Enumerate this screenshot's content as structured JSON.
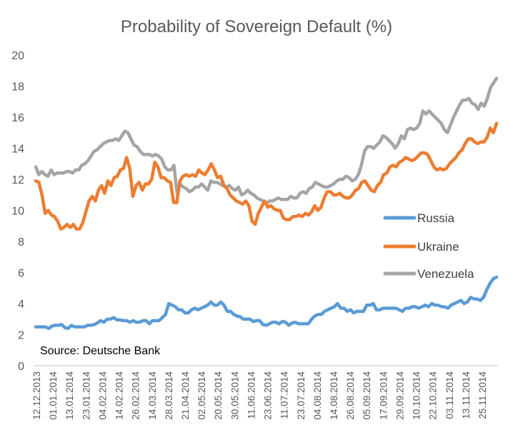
{
  "chart_data": {
    "type": "line",
    "title": "Probability of Sovereign Default (%)",
    "xlabel": "",
    "ylabel": "",
    "ylim": [
      0,
      20
    ],
    "yticks": [
      0,
      2,
      4,
      6,
      8,
      10,
      12,
      14,
      16,
      18,
      20
    ],
    "grid": false,
    "legend": {
      "placement": "right-middle"
    },
    "annotation": "Source: Deutsche Bank",
    "x_tick_labels": [
      "12.12.2013",
      "01.01.2014",
      "13.01.2014",
      "23.01.2014",
      "04.02.2014",
      "14.02.2014",
      "26.02.2014",
      "14.03.2014",
      "28.03.2014",
      "21.04.2014",
      "02.05.2014",
      "20.05.2014",
      "30.05.2014",
      "11.06.2014",
      "23.06.2014",
      "11.07.2014",
      "23.07.2014",
      "04.08.2014",
      "14.08.2014",
      "26.08.2014",
      "05.09.2014",
      "17.09.2014",
      "29.09.2014",
      "10.10.2014",
      "22.10.2014",
      "03.11.2014",
      "13.11.2014",
      "25.11.2014"
    ],
    "series": [
      {
        "name": "Russia",
        "color": "#5b9bd5",
        "values": [
          2.5,
          2.5,
          2.5,
          2.5,
          2.4,
          2.55,
          2.6,
          2.6,
          2.65,
          2.45,
          2.4,
          2.6,
          2.5,
          2.5,
          2.5,
          2.5,
          2.6,
          2.6,
          2.65,
          2.75,
          2.9,
          2.8,
          3.0,
          3.0,
          3.1,
          2.95,
          2.95,
          2.9,
          2.9,
          2.8,
          2.9,
          2.8,
          2.8,
          2.9,
          2.9,
          2.7,
          2.9,
          2.9,
          2.9,
          3.1,
          3.3,
          4.0,
          3.9,
          3.8,
          3.6,
          3.6,
          3.4,
          3.4,
          3.6,
          3.7,
          3.6,
          3.7,
          3.8,
          3.9,
          4.1,
          3.9,
          3.9,
          4.1,
          3.9,
          3.5,
          3.5,
          3.3,
          3.2,
          3.15,
          3.0,
          3.0,
          3.0,
          2.85,
          2.9,
          2.9,
          2.65,
          2.6,
          2.7,
          2.8,
          2.8,
          2.7,
          2.85,
          2.8,
          2.6,
          2.75,
          2.8,
          2.7,
          2.7,
          2.7,
          2.7,
          3.0,
          3.2,
          3.3,
          3.3,
          3.5,
          3.6,
          3.7,
          3.8,
          4.0,
          3.7,
          3.7,
          3.5,
          3.6,
          3.4,
          3.5,
          3.5,
          3.5,
          3.9,
          3.9,
          4.0,
          3.6,
          3.6,
          3.7,
          3.7,
          3.7,
          3.7,
          3.7,
          3.6,
          3.5,
          3.7,
          3.7,
          3.8,
          3.8,
          3.7,
          3.8,
          3.9,
          3.8,
          4.0,
          3.9,
          3.9,
          3.8,
          3.8,
          3.7,
          3.9,
          4.0,
          4.1,
          4.2,
          4.0,
          4.1,
          4.4,
          4.3,
          4.3,
          4.2,
          4.4,
          4.9,
          5.3,
          5.6,
          5.7
        ]
      },
      {
        "name": "Ukraine",
        "color": "#ed7d31",
        "values": [
          11.9,
          11.8,
          11.0,
          9.8,
          10.0,
          9.7,
          9.6,
          9.3,
          8.8,
          8.9,
          9.1,
          8.9,
          9.1,
          8.8,
          8.8,
          9.2,
          9.9,
          10.6,
          10.9,
          10.6,
          11.3,
          11.6,
          11.1,
          11.9,
          11.6,
          12.1,
          12.2,
          12.6,
          12.7,
          13.4,
          12.7,
          10.9,
          11.6,
          11.8,
          11.3,
          11.7,
          11.7,
          12.0,
          13.1,
          12.8,
          12.1,
          12.1,
          11.9,
          11.8,
          10.5,
          10.5,
          11.9,
          12.2,
          12.3,
          12.2,
          12.3,
          12.2,
          12.6,
          12.4,
          12.3,
          12.6,
          13.0,
          12.6,
          12.1,
          12.2,
          11.6,
          11.4,
          11.0,
          10.8,
          10.6,
          10.5,
          10.4,
          10.6,
          10.3,
          9.3,
          9.1,
          9.8,
          10.2,
          10.6,
          10.2,
          10.3,
          10.1,
          10.0,
          10.0,
          9.5,
          9.4,
          9.4,
          9.6,
          9.6,
          9.7,
          9.6,
          9.8,
          9.7,
          9.9,
          10.3,
          10.0,
          10.2,
          10.8,
          11.2,
          11.2,
          11.0,
          11.0,
          11.1,
          10.9,
          10.8,
          10.8,
          11.0,
          11.3,
          11.4,
          11.8,
          11.9,
          11.6,
          11.3,
          11.2,
          11.6,
          11.8,
          12.3,
          12.4,
          12.8,
          12.9,
          12.8,
          13.1,
          13.2,
          13.4,
          13.3,
          13.2,
          13.3,
          13.5,
          13.7,
          13.7,
          13.6,
          13.2,
          12.8,
          12.6,
          12.7,
          12.6,
          12.7,
          13.0,
          13.2,
          13.4,
          13.7,
          13.9,
          14.3,
          14.6,
          14.6,
          14.4,
          14.3,
          14.4,
          14.4,
          14.7,
          15.3,
          15.0,
          15.6
        ]
      },
      {
        "name": "Venezuela",
        "color": "#a5a5a5",
        "values": [
          12.8,
          12.3,
          12.5,
          12.3,
          12.2,
          12.6,
          12.3,
          12.4,
          12.4,
          12.4,
          12.5,
          12.5,
          12.4,
          12.6,
          12.6,
          12.9,
          13.0,
          13.2,
          13.5,
          13.8,
          13.9,
          14.1,
          14.3,
          14.4,
          14.5,
          14.5,
          14.6,
          14.5,
          14.8,
          15.1,
          15.0,
          14.6,
          14.2,
          14.1,
          13.8,
          13.6,
          13.6,
          13.6,
          13.5,
          13.6,
          13.5,
          13.3,
          12.8,
          12.6,
          12.6,
          12.9,
          11.1,
          11.7,
          11.5,
          11.4,
          11.2,
          11.3,
          11.5,
          11.5,
          11.7,
          11.5,
          11.3,
          11.9,
          11.8,
          11.8,
          11.7,
          11.6,
          11.5,
          11.6,
          11.4,
          11.3,
          11.5,
          11.0,
          11.1,
          11.3,
          11.1,
          11.0,
          10.8,
          10.7,
          10.6,
          10.4,
          10.6,
          10.6,
          10.7,
          10.8,
          10.7,
          10.7,
          10.7,
          10.9,
          10.8,
          10.8,
          11.1,
          11.2,
          11.1,
          11.4,
          11.5,
          11.8,
          11.7,
          11.6,
          11.5,
          11.5,
          11.6,
          11.7,
          11.9,
          12.0,
          12.0,
          12.2,
          12.1,
          11.9,
          12.0,
          12.3,
          12.9,
          13.8,
          14.1,
          14.1,
          14.0,
          14.2,
          14.4,
          14.8,
          14.7,
          14.5,
          14.3,
          14.0,
          14.3,
          14.8,
          14.6,
          15.2,
          15.3,
          15.2,
          15.3,
          15.6,
          16.4,
          16.2,
          16.4,
          16.2,
          16.0,
          15.8,
          15.6,
          15.2,
          15.0,
          15.5,
          16.0,
          16.4,
          16.8,
          17.1,
          17.1,
          17.2,
          16.9,
          16.8,
          16.5,
          16.9,
          16.7,
          17.2,
          17.9,
          18.2,
          18.5
        ]
      }
    ]
  }
}
